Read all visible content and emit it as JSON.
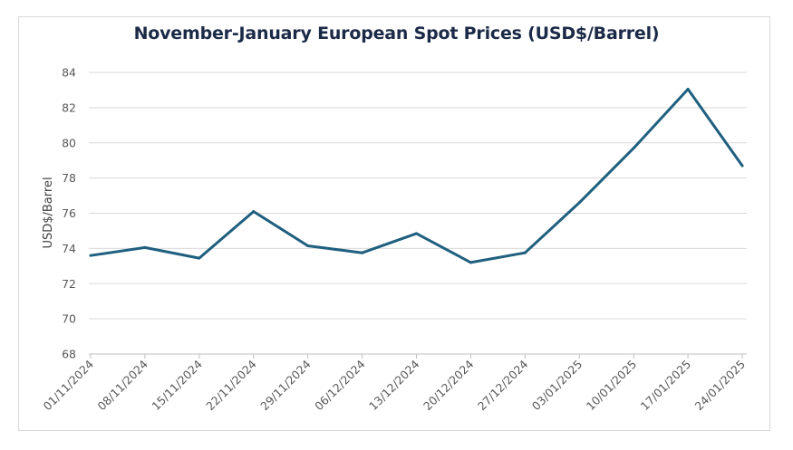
{
  "chart_data": {
    "type": "line",
    "title": "November-January European Spot Prices (USD$/Barrel)",
    "xlabel": "",
    "ylabel": "USD$/Barrel",
    "ylim": [
      68,
      84
    ],
    "yticks": [
      68,
      70,
      72,
      74,
      76,
      78,
      80,
      82,
      84
    ],
    "grid": true,
    "legend": "none",
    "categories": [
      "01/11/2024",
      "08/11/2024",
      "15/11/2024",
      "22/11/2024",
      "29/11/2024",
      "06/12/2024",
      "13/12/2024",
      "20/12/2024",
      "27/12/2024",
      "03/01/2025",
      "10/01/2025",
      "17/01/2025",
      "24/01/2025"
    ],
    "series": [
      {
        "values": [
          73.6,
          74.05,
          73.45,
          76.1,
          74.15,
          73.75,
          74.85,
          73.2,
          73.75,
          76.6,
          79.7,
          83.05,
          78.7
        ]
      }
    ],
    "colors": {
      "line": "#1f5f7f",
      "grid": "#d9d9d9",
      "axis": "#bfbfbf",
      "title": "#1b2a47"
    }
  }
}
